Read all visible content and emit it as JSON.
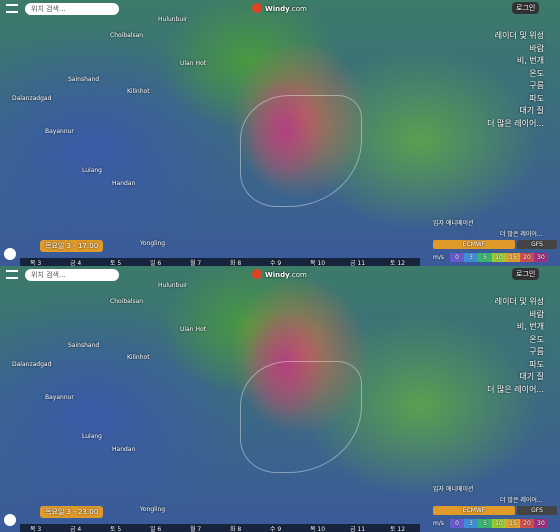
{
  "app": {
    "search": "위치 검색...",
    "brand": "Windy",
    "brand_suffix": ".com",
    "login": "로그인",
    "layers": [
      "레이더 및 위성",
      "바람",
      "비, 번개",
      "온도",
      "구름",
      "파도",
      "대기 질",
      "더 많은 레이어..."
    ],
    "particles": "입자 애니메이션",
    "more_layers": "더 많은 레이어...",
    "models": [
      "ECMWF",
      "GFS"
    ],
    "units": "m/s",
    "scale": [
      0,
      3,
      5,
      10,
      15,
      20,
      30
    ],
    "days": [
      "목 3",
      "금 4",
      "토 5",
      "일 6",
      "월 7",
      "화 8",
      "수 9",
      "목 10",
      "금 11",
      "토 12"
    ]
  },
  "places": [
    "Hulunbuir",
    "Choibalsan",
    "Ulan Hot",
    "Sainshand",
    "Kilinhot",
    "Dalanzadgad",
    "Bayannur",
    "Lulang",
    "Handan",
    "Yongling"
  ],
  "panels": [
    {
      "time": "목요일 3 - 17:00"
    },
    {
      "time": "목요일 3 - 23:00"
    }
  ]
}
